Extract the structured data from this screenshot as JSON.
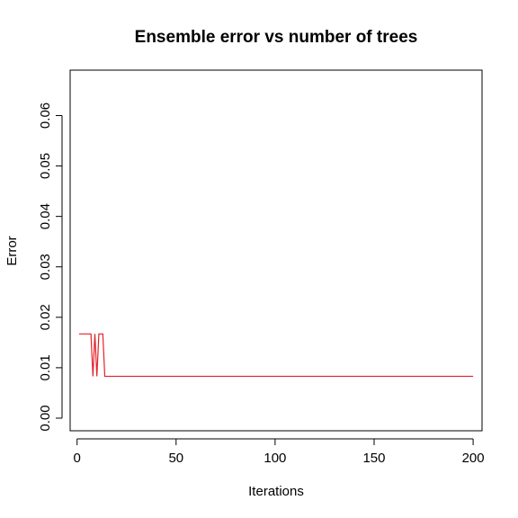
{
  "chart_data": {
    "type": "line",
    "title": "Ensemble error vs number of trees",
    "xlabel": "Iterations",
    "ylabel": "Error",
    "xlim": [
      -3.5,
      204.5
    ],
    "ylim": [
      -0.0025,
      0.069
    ],
    "grid": false,
    "legend": "none",
    "x_ticks": [
      0,
      50,
      100,
      150,
      200
    ],
    "x_tick_labels": [
      "0",
      "50",
      "100",
      "150",
      "200"
    ],
    "y_ticks": [
      0,
      0.01,
      0.02,
      0.03,
      0.04,
      0.05,
      0.06
    ],
    "y_tick_labels": [
      "0.00",
      "0.01",
      "0.02",
      "0.03",
      "0.04",
      "0.05",
      "0.06"
    ],
    "series": [
      {
        "color": "#e4212a",
        "x": [
          1,
          7,
          8,
          9,
          10,
          11,
          13,
          14,
          200
        ],
        "y": [
          0.0167,
          0.0167,
          0.0083,
          0.0167,
          0.0083,
          0.0167,
          0.0167,
          0.0083,
          0.0083
        ]
      }
    ]
  }
}
